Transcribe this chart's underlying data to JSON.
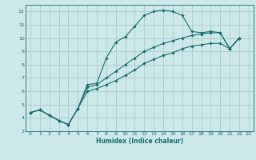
{
  "title": "",
  "xlabel": "Humidex (Indice chaleur)",
  "bg_color": "#cce8e8",
  "grid_color": "#aacccc",
  "line_color": "#1a6e6e",
  "xlim": [
    -0.5,
    23.5
  ],
  "ylim": [
    3,
    12.5
  ],
  "xticks": [
    0,
    1,
    2,
    3,
    4,
    5,
    6,
    7,
    8,
    9,
    10,
    11,
    12,
    13,
    14,
    15,
    16,
    17,
    18,
    19,
    20,
    21,
    22,
    23
  ],
  "yticks": [
    3,
    4,
    5,
    6,
    7,
    8,
    9,
    10,
    11,
    12
  ],
  "line1_y": [
    4.4,
    4.6,
    4.2,
    3.8,
    3.5,
    4.7,
    6.5,
    6.6,
    8.5,
    9.7,
    10.1,
    10.9,
    11.7,
    12.0,
    12.1,
    12.0,
    11.7,
    10.5,
    10.4,
    10.5,
    10.4,
    9.2,
    10.0
  ],
  "line2_y": [
    4.4,
    4.6,
    4.2,
    3.8,
    3.5,
    4.7,
    6.3,
    6.5,
    7.0,
    7.5,
    8.0,
    8.5,
    9.0,
    9.3,
    9.6,
    9.8,
    10.0,
    10.2,
    10.3,
    10.4,
    10.4,
    9.2,
    10.0
  ],
  "line3_y": [
    4.4,
    4.6,
    4.2,
    3.8,
    3.5,
    4.7,
    6.0,
    6.2,
    6.5,
    6.8,
    7.2,
    7.6,
    8.1,
    8.4,
    8.7,
    8.9,
    9.2,
    9.4,
    9.5,
    9.6,
    9.6,
    9.2,
    10.0
  ]
}
